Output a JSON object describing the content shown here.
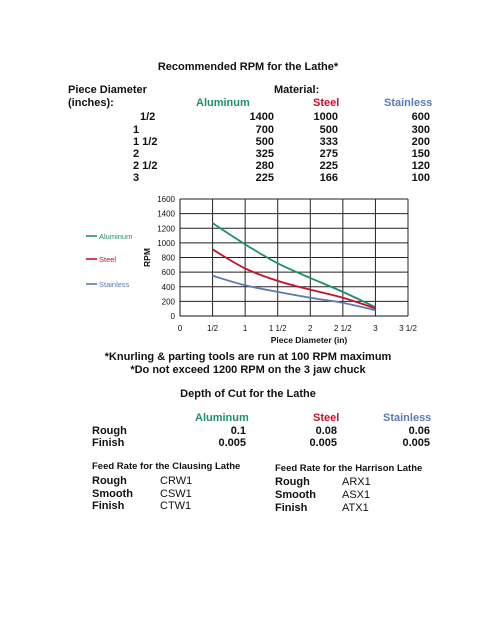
{
  "title": "Recommended RPM for the Lathe*",
  "rpm_table": {
    "diameter_header": [
      "Piece Diameter",
      "(inches):"
    ],
    "material_header": "Material:",
    "columns": [
      "Aluminum",
      "Steel",
      "Stainless"
    ],
    "rows": [
      {
        "diameter": "1/2",
        "values": [
          "1400",
          "1000",
          "600"
        ]
      },
      {
        "diameter": "1",
        "values": [
          "700",
          "500",
          "300"
        ]
      },
      {
        "diameter": "1 1/2",
        "values": [
          "500",
          "333",
          "200"
        ]
      },
      {
        "diameter": "2",
        "values": [
          "325",
          "275",
          "150"
        ]
      },
      {
        "diameter": "2 1/2",
        "values": [
          "280",
          "225",
          "120"
        ]
      },
      {
        "diameter": "3",
        "values": [
          "225",
          "166",
          "100"
        ]
      }
    ]
  },
  "colors": {
    "aluminum": "#1d8f6f",
    "steel": "#c8102e",
    "stainless": "#5b79b3"
  },
  "chart_data": {
    "type": "line",
    "x": [
      0.5,
      1,
      1.5,
      2,
      2.5,
      3
    ],
    "x_tick_values": [
      0,
      0.5,
      1,
      1.5,
      2,
      2.5,
      3,
      3.5
    ],
    "x_tick_labels": [
      "0",
      "1/2",
      "1",
      "1 1/2",
      "2",
      "2 1/2",
      "3",
      "3 1/2"
    ],
    "xlim": [
      0,
      3.5
    ],
    "ylim": [
      0,
      1600
    ],
    "y_ticks": [
      0,
      200,
      400,
      600,
      800,
      1000,
      1200,
      1400,
      1600
    ],
    "xlabel": "Piece Diameter (in)",
    "ylabel": "RPM",
    "grid": true,
    "legend": "left",
    "series": [
      {
        "name": "Aluminum",
        "color": "#1d8f6f",
        "values": [
          1270,
          980,
          720,
          520,
          330,
          120
        ]
      },
      {
        "name": "Steel",
        "color": "#c8102e",
        "values": [
          910,
          650,
          480,
          360,
          250,
          105
        ]
      },
      {
        "name": "Stainless",
        "color": "#5b79b3",
        "values": [
          550,
          420,
          330,
          250,
          180,
          80
        ]
      }
    ]
  },
  "notes": [
    "*Knurling & parting tools are run at 100 RPM maximum",
    "*Do not exceed 1200 RPM on the 3 jaw chuck"
  ],
  "depth": {
    "title": "Depth of Cut for the Lathe",
    "columns": [
      "Aluminum",
      "Steel",
      "Stainless"
    ],
    "rows": [
      {
        "label": "Rough",
        "values": [
          "0.1",
          "0.08",
          "0.06"
        ]
      },
      {
        "label": "Finish",
        "values": [
          "0.005",
          "0.005",
          "0.005"
        ]
      }
    ]
  },
  "feed_clausing": {
    "title": "Feed Rate for the Clausing Lathe",
    "rows": [
      {
        "label": "Rough",
        "code": "CRW1"
      },
      {
        "label": "Smooth",
        "code": "CSW1"
      },
      {
        "label": "Finish",
        "code": "CTW1"
      }
    ]
  },
  "feed_harrison": {
    "title": "Feed Rate for the Harrison Lathe",
    "rows": [
      {
        "label": "Rough",
        "code": "ARX1"
      },
      {
        "label": "Smooth",
        "code": "ASX1"
      },
      {
        "label": "Finish",
        "code": "ATX1"
      }
    ]
  }
}
